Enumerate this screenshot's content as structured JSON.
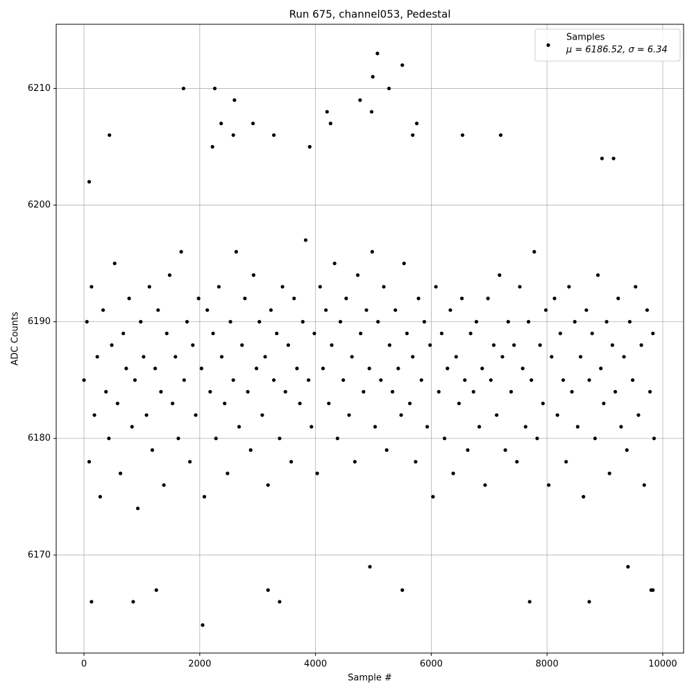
{
  "chart_data": {
    "type": "scatter",
    "title": "Run 675, channel053, Pedestal",
    "x_label": "Sample #",
    "y_label": "ADC Counts",
    "xlim": [
      -480,
      10360
    ],
    "ylim": [
      6161.6,
      6215.5
    ],
    "xticks": [
      0,
      2000,
      4000,
      6000,
      8000,
      10000
    ],
    "yticks": [
      6170,
      6180,
      6190,
      6200,
      6210
    ],
    "grid": true,
    "legend": "upper right",
    "legend_note": "μ = 6186.52, σ = 6.34",
    "x": [
      0,
      50,
      90,
      130,
      180,
      230,
      280,
      330,
      380,
      430,
      480,
      530,
      580,
      630,
      680,
      730,
      780,
      830,
      880,
      930,
      980,
      1030,
      1080,
      1130,
      1180,
      1230,
      1280,
      1330,
      1380,
      1430,
      1480,
      1530,
      1580,
      1630,
      1680,
      1730,
      1780,
      1830,
      1880,
      1930,
      1980,
      2030,
      2080,
      2130,
      2180,
      2230,
      2280,
      2330,
      2380,
      2430,
      2480,
      2530,
      2580,
      2630,
      2680,
      2730,
      2780,
      2830,
      2880,
      2930,
      2980,
      3030,
      3080,
      3130,
      3180,
      3230,
      3280,
      3330,
      3380,
      3430,
      3480,
      3530,
      3580,
      3630,
      3680,
      3730,
      3780,
      3830,
      3880,
      3930,
      3980,
      4030,
      4080,
      4130,
      4180,
      4230,
      4280,
      4330,
      4380,
      4430,
      4480,
      4530,
      4580,
      4630,
      4680,
      4730,
      4780,
      4830,
      4880,
      4930,
      4980,
      5030,
      5080,
      5130,
      5180,
      5230,
      5280,
      5330,
      5380,
      5430,
      5480,
      5530,
      5580,
      5630,
      5680,
      5730,
      5780,
      5830,
      5880,
      5930,
      5980,
      6030,
      6080,
      6130,
      6180,
      6230,
      6280,
      6330,
      6380,
      6430,
      6480,
      6530,
      6580,
      6630,
      6680,
      6730,
      6780,
      6830,
      6880,
      6930,
      6980,
      7030,
      7080,
      7130,
      7180,
      7230,
      7280,
      7330,
      7380,
      7430,
      7480,
      7530,
      7580,
      7630,
      7680,
      7730,
      7780,
      7830,
      7880,
      7930,
      7980,
      8030,
      8080,
      8130,
      8180,
      8230,
      8280,
      8330,
      8380,
      8430,
      8480,
      8530,
      8580,
      8630,
      8680,
      8730,
      8780,
      8830,
      8880,
      8930,
      8980,
      9030,
      9080,
      9130,
      9180,
      9230,
      9280,
      9330,
      9380,
      9430,
      9480,
      9530,
      9580,
      9630,
      9680,
      9730,
      9780,
      9830,
      9850,
      130,
      850,
      1250,
      2050,
      3180,
      3380,
      5500,
      7700,
      8730,
      1720,
      2260,
      5070,
      5500,
      4990,
      5270,
      2600,
      4770,
      4200,
      4970,
      440,
      2580,
      3280,
      5680,
      6540,
      7200,
      2370,
      2920,
      5750,
      4260,
      8950,
      9150,
      90,
      9800,
      9830,
      3900,
      2220,
      4940,
      9400
    ],
    "series": [
      {
        "name": "Samples",
        "color": "#000000",
        "values": [
          6185,
          6190,
          6178,
          6193,
          6182,
          6187,
          6175,
          6191,
          6184,
          6180,
          6188,
          6195,
          6183,
          6177,
          6189,
          6186,
          6192,
          6181,
          6185,
          6174,
          6190,
          6187,
          6182,
          6193,
          6179,
          6186,
          6191,
          6184,
          6176,
          6189,
          6194,
          6183,
          6187,
          6180,
          6196,
          6185,
          6190,
          6178,
          6188,
          6182,
          6192,
          6186,
          6175,
          6191,
          6184,
          6189,
          6180,
          6193,
          6187,
          6183,
          6177,
          6190,
          6185,
          6196,
          6181,
          6188,
          6192,
          6184,
          6179,
          6194,
          6186,
          6190,
          6182,
          6187,
          6176,
          6191,
          6185,
          6189,
          6180,
          6193,
          6184,
          6188,
          6178,
          6192,
          6186,
          6183,
          6190,
          6197,
          6185,
          6181,
          6189,
          6177,
          6193,
          6186,
          6191,
          6183,
          6188,
          6195,
          6180,
          6190,
          6185,
          6192,
          6182,
          6187,
          6178,
          6194,
          6189,
          6184,
          6191,
          6186,
          6196,
          6181,
          6190,
          6185,
          6193,
          6179,
          6188,
          6184,
          6191,
          6186,
          6182,
          6195,
          6189,
          6183,
          6187,
          6178,
          6192,
          6185,
          6190,
          6181,
          6188,
          6175,
          6193,
          6184,
          6189,
          6180,
          6186,
          6191,
          6177,
          6187,
          6183,
          6192,
          6185,
          6179,
          6189,
          6184,
          6190,
          6181,
          6186,
          6176,
          6192,
          6185,
          6188,
          6182,
          6194,
          6187,
          6179,
          6190,
          6184,
          6188,
          6178,
          6193,
          6186,
          6181,
          6190,
          6185,
          6196,
          6180,
          6188,
          6183,
          6191,
          6176,
          6187,
          6192,
          6182,
          6189,
          6185,
          6178,
          6193,
          6184,
          6190,
          6181,
          6187,
          6175,
          6191,
          6185,
          6189,
          6180,
          6194,
          6186,
          6183,
          6190,
          6177,
          6188,
          6184,
          6192,
          6181,
          6187,
          6179,
          6190,
          6185,
          6193,
          6182,
          6188,
          6176,
          6191,
          6184,
          6189,
          6180,
          6166,
          6166,
          6167,
          6164,
          6167,
          6166,
          6167,
          6166,
          6166,
          6210,
          6210,
          6213,
          6212,
          6211,
          6210,
          6209,
          6209,
          6208,
          6208,
          6206,
          6206,
          6206,
          6206,
          6206,
          6206,
          6207,
          6207,
          6207,
          6207,
          6204,
          6204,
          6202,
          6167,
          6167,
          6205,
          6205,
          6169,
          6169
        ]
      }
    ]
  }
}
